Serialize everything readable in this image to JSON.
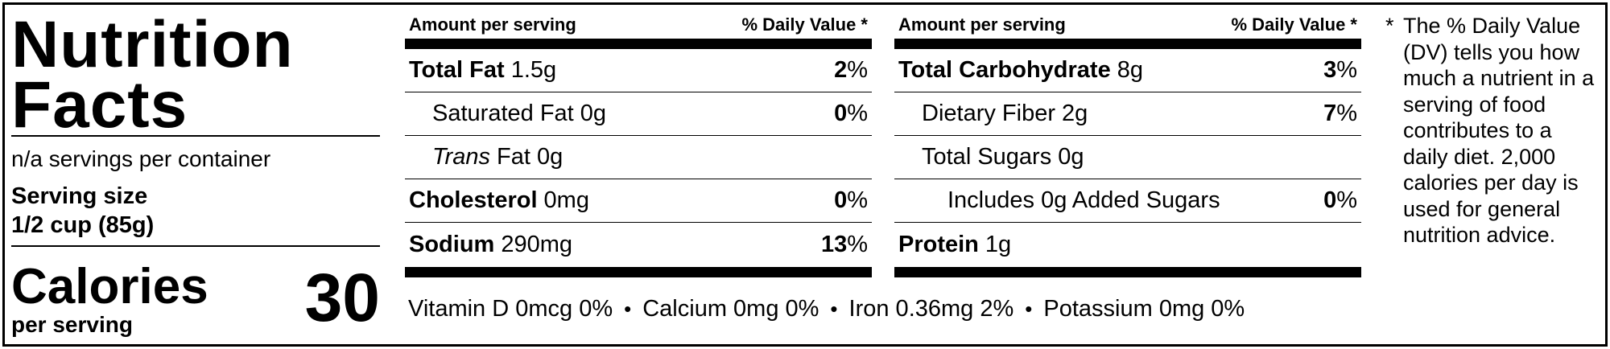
{
  "title": "Nutrition Facts",
  "servings_per_container": "n/a servings per container",
  "serving_size_label": "Serving size",
  "serving_size_value": "1/2 cup (85g)",
  "calories_label": "Calories",
  "per_serving_label": "per serving",
  "calories_value": "30",
  "header": {
    "amount_per_serving": "Amount per serving",
    "daily_value": "% Daily Value *"
  },
  "left_table": [
    {
      "name": "Total Fat",
      "amount": "1.5g",
      "dv": "2",
      "bold": true
    },
    {
      "name": "Saturated Fat",
      "amount": "0g",
      "dv": "0",
      "bold": false
    },
    {
      "name": "Trans",
      "name_suffix": "Fat",
      "amount": "0g",
      "dv": "",
      "bold": false
    },
    {
      "name": "Cholesterol",
      "amount": "0mg",
      "dv": "0",
      "bold": true
    },
    {
      "name": "Sodium",
      "amount": "290mg",
      "dv": "13",
      "bold": true
    }
  ],
  "right_table": [
    {
      "name": "Total Carbohydrate",
      "amount": "8g",
      "dv": "3",
      "bold": true
    },
    {
      "name": "Dietary Fiber",
      "amount": "2g",
      "dv": "7",
      "bold": false
    },
    {
      "name": "Total Sugars",
      "amount": "0g",
      "dv": "",
      "bold": false
    },
    {
      "name": "Includes 0g Added Sugars",
      "amount": "",
      "dv": "0",
      "bold": false
    },
    {
      "name": "Protein",
      "amount": "1g",
      "dv": "",
      "bold": true
    }
  ],
  "percent_sign": "%",
  "bullet": "•",
  "vitamins": [
    "Vitamin D 0mcg 0%",
    "Calcium 0mg 0%",
    "Iron 0.36mg 2%",
    "Potassium 0mg 0%"
  ],
  "footnote": {
    "asterisk": "*",
    "text": "The % Daily Value (DV) tells you how much a nutrient in a serving of food contributes to a daily diet. 2,000 calories per day is used for general nutrition advice."
  }
}
